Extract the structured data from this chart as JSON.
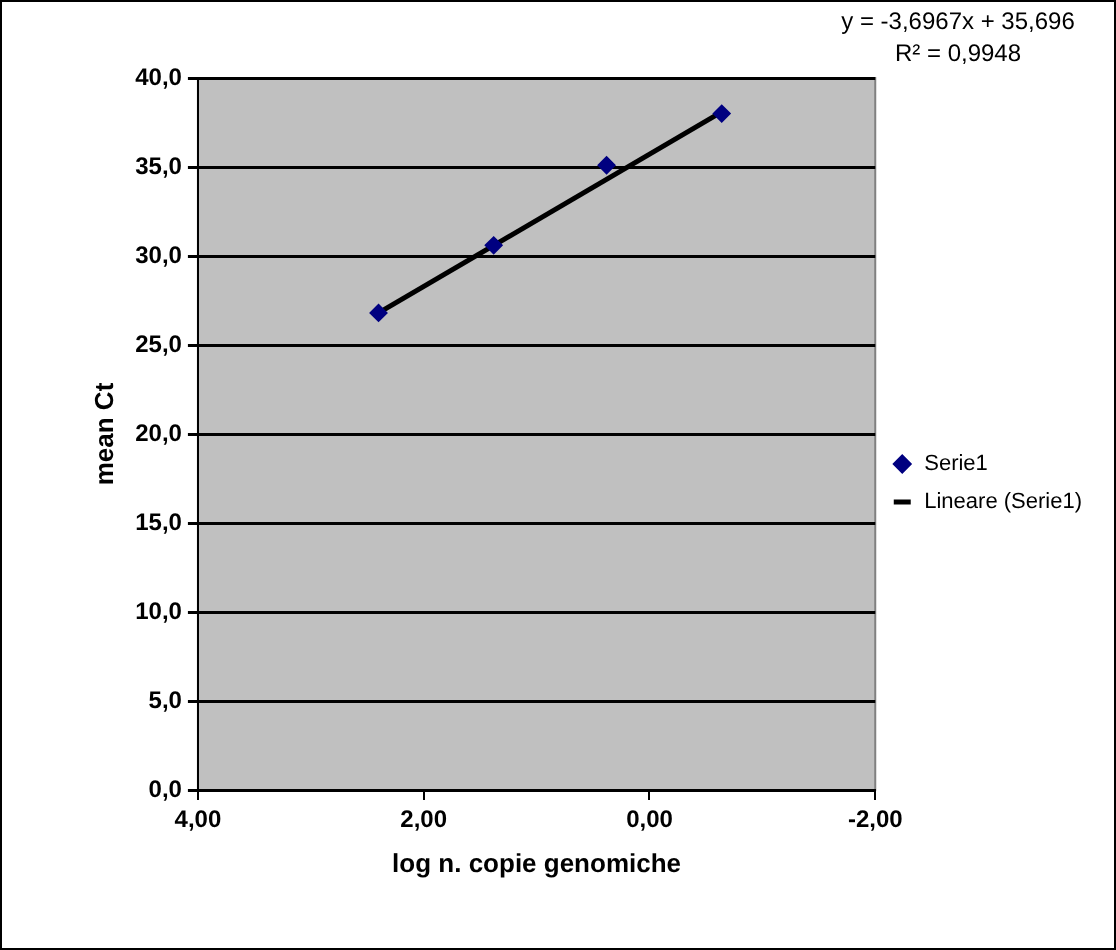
{
  "chart_data": {
    "type": "scatter",
    "xlabel": "log n. copie genomiche",
    "ylabel": "mean Ct",
    "xlim": [
      4,
      -2
    ],
    "xticks": [
      {
        "value": 4,
        "label": "4,00"
      },
      {
        "value": 2,
        "label": "2,00"
      },
      {
        "value": 0,
        "label": "0,00"
      },
      {
        "value": -2,
        "label": "-2,00"
      }
    ],
    "ylim": [
      0,
      40
    ],
    "yticks": [
      {
        "value": 0,
        "label": "0,0"
      },
      {
        "value": 5,
        "label": "5,0"
      },
      {
        "value": 10,
        "label": "10,0"
      },
      {
        "value": 15,
        "label": "15,0"
      },
      {
        "value": 20,
        "label": "20,0"
      },
      {
        "value": 25,
        "label": "25,0"
      },
      {
        "value": 30,
        "label": "30,0"
      },
      {
        "value": 35,
        "label": "35,0"
      },
      {
        "value": 40,
        "label": "40,0"
      }
    ],
    "series": [
      {
        "name": "Serie1",
        "color": "#000080",
        "marker": "diamond",
        "x": [
          2.4,
          1.38,
          0.38,
          -0.64
        ],
        "values": [
          26.8,
          30.6,
          35.1,
          38.0
        ]
      },
      {
        "name": "Lineare (Serie1)",
        "type": "line",
        "color": "#000000",
        "marker": "none",
        "x": [
          2.4,
          -0.64
        ],
        "values": [
          26.8,
          38.1
        ]
      }
    ],
    "grid": "y",
    "legend": "right",
    "annotations": [
      "y = -3,6967x + 35,696",
      "R² = 0,9948"
    ]
  }
}
